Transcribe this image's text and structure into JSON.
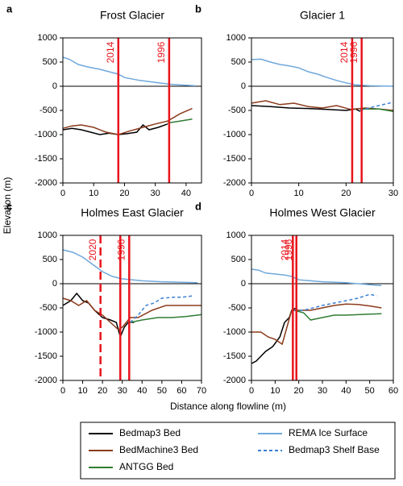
{
  "chart_data": [
    {
      "type": "line",
      "panel": "a",
      "title": "Frost Glacier",
      "xlim": [
        0,
        45
      ],
      "xticks": [
        0,
        10,
        20,
        30,
        40
      ],
      "ylim": [
        -2000,
        1000
      ],
      "yticks": [
        -2000,
        -1500,
        -1000,
        -500,
        0,
        500,
        1000
      ],
      "series": [
        {
          "color": "#6fa8dc",
          "dashed": false,
          "x": [
            0,
            2,
            5,
            8,
            12,
            15,
            18,
            20,
            25,
            30,
            35,
            40,
            43
          ],
          "values": [
            600,
            560,
            450,
            400,
            350,
            300,
            250,
            180,
            120,
            80,
            40,
            20,
            10
          ]
        },
        {
          "color": "#000000",
          "dashed": false,
          "x": [
            0,
            3,
            6,
            9,
            12,
            15,
            18,
            21,
            24,
            26,
            28,
            31,
            34
          ],
          "values": [
            -900,
            -870,
            -900,
            -950,
            -1000,
            -970,
            -1000,
            -980,
            -950,
            -800,
            -900,
            -850,
            -780
          ]
        },
        {
          "color": "#8b3a1a",
          "dashed": false,
          "x": [
            0,
            3,
            6,
            10,
            14,
            18,
            22,
            26,
            30,
            34,
            38,
            42
          ],
          "values": [
            -870,
            -820,
            -800,
            -850,
            -950,
            -1000,
            -920,
            -850,
            -780,
            -720,
            -570,
            -460
          ]
        },
        {
          "color": "#2e7d32",
          "dashed": false,
          "x": [
            34,
            38,
            42
          ],
          "values": [
            -760,
            -720,
            -680
          ]
        }
      ],
      "markers": [
        {
          "x": 18,
          "label": "2014",
          "dashed": false
        },
        {
          "x": 34.5,
          "label": "1996",
          "dashed": false
        }
      ]
    },
    {
      "type": "line",
      "panel": "b",
      "title": "Glacier 1",
      "xlim": [
        0,
        30
      ],
      "xticks": [
        0,
        10,
        20,
        30
      ],
      "ylim": [
        -2000,
        1000
      ],
      "yticks": [
        -2000,
        -1500,
        -1000,
        -500,
        0,
        500,
        1000
      ],
      "series": [
        {
          "color": "#6fa8dc",
          "dashed": false,
          "x": [
            0,
            2,
            4,
            6,
            8,
            10,
            12,
            14,
            16,
            18,
            20,
            22,
            25,
            30
          ],
          "values": [
            550,
            560,
            500,
            450,
            420,
            380,
            300,
            250,
            180,
            120,
            70,
            30,
            10,
            0
          ]
        },
        {
          "color": "#000000",
          "dashed": false,
          "x": [
            0,
            4,
            8,
            12,
            16,
            20,
            22,
            23
          ],
          "values": [
            -400,
            -420,
            -450,
            -460,
            -480,
            -500,
            -470,
            -520
          ]
        },
        {
          "color": "#8b3a1a",
          "dashed": false,
          "x": [
            0,
            3,
            6,
            9,
            12,
            15,
            18,
            21,
            24,
            27,
            30
          ],
          "values": [
            -350,
            -300,
            -380,
            -350,
            -420,
            -450,
            -400,
            -480,
            -450,
            -470,
            -500
          ]
        },
        {
          "color": "#2e7d32",
          "dashed": false,
          "x": [
            23,
            27,
            30
          ],
          "values": [
            -470,
            -470,
            -520
          ]
        },
        {
          "color": "#3a7fd5",
          "dashed": true,
          "x": [
            23,
            26,
            30
          ],
          "values": [
            -500,
            -420,
            -330
          ]
        }
      ],
      "markers": [
        {
          "x": 21.3,
          "label": "2014",
          "dashed": false
        },
        {
          "x": 23.3,
          "label": "1996",
          "dashed": false
        }
      ]
    },
    {
      "type": "line",
      "panel": "c",
      "title": "Holmes East Glacier",
      "xlim": [
        0,
        70
      ],
      "xticks": [
        0,
        10,
        20,
        30,
        40,
        50,
        60,
        70
      ],
      "ylim": [
        -2000,
        1000
      ],
      "yticks": [
        -2000,
        -1500,
        -1000,
        -500,
        0,
        500,
        1000
      ],
      "series": [
        {
          "color": "#6fa8dc",
          "dashed": false,
          "x": [
            0,
            5,
            10,
            15,
            20,
            25,
            30,
            40,
            50,
            60,
            68
          ],
          "values": [
            700,
            650,
            550,
            400,
            250,
            150,
            100,
            60,
            40,
            30,
            20
          ]
        },
        {
          "color": "#000000",
          "dashed": false,
          "x": [
            0,
            4,
            7,
            10,
            13,
            16,
            20,
            24,
            27,
            29,
            31,
            33,
            36
          ],
          "values": [
            -450,
            -350,
            -200,
            -350,
            -400,
            -550,
            -700,
            -750,
            -800,
            -1100,
            -900,
            -800,
            -800
          ]
        },
        {
          "color": "#8b3a1a",
          "dashed": false,
          "x": [
            0,
            4,
            8,
            12,
            16,
            20,
            24,
            28,
            30,
            34,
            38,
            45,
            52,
            60,
            70
          ],
          "values": [
            -300,
            -350,
            -450,
            -350,
            -550,
            -650,
            -800,
            -950,
            -900,
            -700,
            -700,
            -550,
            -450,
            -450,
            -450
          ]
        },
        {
          "color": "#2e7d32",
          "dashed": false,
          "x": [
            34,
            40,
            48,
            55,
            62,
            70
          ],
          "values": [
            -800,
            -750,
            -700,
            -700,
            -680,
            -640
          ]
        },
        {
          "color": "#3a7fd5",
          "dashed": true,
          "x": [
            34,
            38,
            42,
            46,
            50,
            56,
            60,
            66
          ],
          "values": [
            -800,
            -650,
            -450,
            -400,
            -300,
            -280,
            -280,
            -250
          ]
        }
      ],
      "markers": [
        {
          "x": 19,
          "label": "2020",
          "dashed": true
        },
        {
          "x": 29,
          "dashed": false
        },
        {
          "x": 33.5,
          "label": "1996",
          "dashed": false
        }
      ]
    },
    {
      "type": "line",
      "panel": "d",
      "title": "Holmes West Glacier",
      "xlim": [
        0,
        60
      ],
      "xticks": [
        0,
        10,
        20,
        30,
        40,
        50,
        60
      ],
      "ylim": [
        -2000,
        1000
      ],
      "yticks": [
        -2000,
        -1500,
        -1000,
        -500,
        0,
        500,
        1000
      ],
      "series": [
        {
          "color": "#6fa8dc",
          "dashed": false,
          "x": [
            0,
            3,
            6,
            10,
            14,
            17,
            20,
            25,
            30,
            40,
            50,
            55
          ],
          "values": [
            300,
            280,
            220,
            200,
            180,
            150,
            80,
            60,
            40,
            20,
            -20,
            -40
          ]
        },
        {
          "color": "#000000",
          "dashed": false,
          "x": [
            0,
            2,
            4,
            6,
            9,
            12,
            14,
            16,
            17,
            19
          ],
          "values": [
            -1650,
            -1600,
            -1500,
            -1400,
            -1300,
            -1100,
            -800,
            -700,
            -550,
            -500
          ]
        },
        {
          "color": "#8b3a1a",
          "dashed": false,
          "x": [
            0,
            4,
            7,
            10,
            13,
            15,
            17,
            20,
            25,
            30,
            35,
            40,
            45,
            50,
            55
          ],
          "values": [
            -1000,
            -1000,
            -1100,
            -1150,
            -1250,
            -900,
            -550,
            -550,
            -550,
            -500,
            -450,
            -420,
            -430,
            -460,
            -500
          ]
        },
        {
          "color": "#2e7d32",
          "dashed": false,
          "x": [
            18,
            22,
            25,
            30,
            35,
            40,
            45,
            50,
            55
          ],
          "values": [
            -550,
            -600,
            -750,
            -700,
            -650,
            -650,
            -640,
            -630,
            -620
          ]
        },
        {
          "color": "#3a7fd5",
          "dashed": true,
          "x": [
            18,
            22,
            26,
            30,
            35,
            40,
            45,
            50,
            53
          ],
          "values": [
            -550,
            -550,
            -500,
            -450,
            -400,
            -350,
            -300,
            -220,
            -250
          ]
        }
      ],
      "markers": [
        {
          "x": 17.5,
          "label": "2014",
          "dashed": false
        },
        {
          "x": 19,
          "label": "1996",
          "dashed": false
        }
      ]
    }
  ],
  "y_label": "Elevation (m)",
  "x_label": "Distance along flowline (m)",
  "legend": [
    {
      "name": "Bedmap3 Bed",
      "color": "#000000",
      "dashed": false
    },
    {
      "name": "REMA Ice Surface",
      "color": "#6fa8dc",
      "dashed": false
    },
    {
      "name": "BedMachine3 Bed",
      "color": "#8b3a1a",
      "dashed": false
    },
    {
      "name": "Bedmap3 Shelf Base",
      "color": "#3a7fd5",
      "dashed": true
    },
    {
      "name": "ANTGG Bed",
      "color": "#2e7d32",
      "dashed": false
    }
  ]
}
